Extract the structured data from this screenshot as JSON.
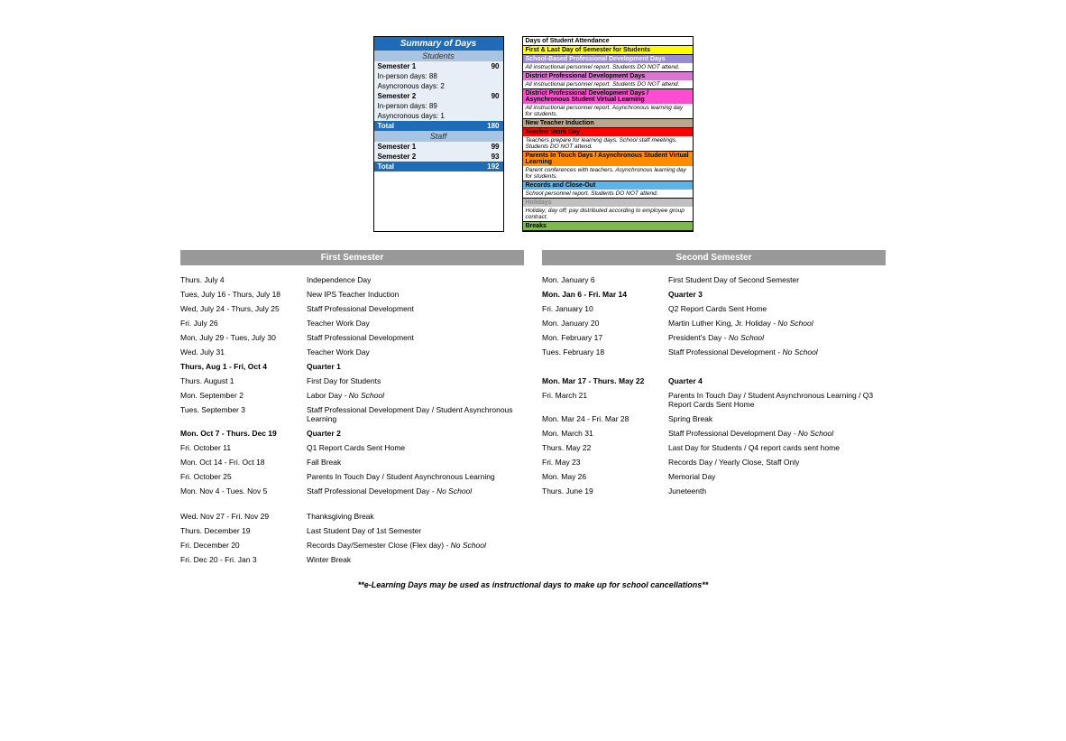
{
  "summary": {
    "title": "Summary of Days",
    "students_label": "Students",
    "staff_label": "Staff",
    "s1_label": "Semester 1",
    "s1_val": "90",
    "s1_inperson": "In-person days: 88",
    "s1_async": "Asyncronous days: 2",
    "s2_label": "Semester 2",
    "s2_val": "90",
    "s2_inperson": "In-person days: 89",
    "s2_async": "Asyncronous days: 1",
    "total_label": "Total",
    "total_students": "180",
    "staff_s1_label": "Semester 1",
    "staff_s1_val": "99",
    "staff_s2_label": "Semester 2",
    "staff_s2_val": "93",
    "total_staff": "192"
  },
  "legend": [
    {
      "head": "Days of Student Attendance",
      "head_bg": "#ffffff",
      "head_color": "#000"
    },
    {
      "head": "First & Last Day of Semester for Students",
      "head_bg": "#ffff00",
      "head_color": "#000"
    },
    {
      "head": "School-Based Professional Development Days",
      "head_bg": "#9b8bd6",
      "head_color": "#fff",
      "desc": "All instructional personnel report. Students DO NOT attend."
    },
    {
      "head": "District Professional Development Days",
      "head_bg": "#d976d0",
      "head_color": "#000",
      "desc": "All instructional personnel report. Students DO NOT attend."
    },
    {
      "head": "District Professional Development Days / Asynchronous Student Virtual Learning",
      "head_bg": "#ff4dd2",
      "head_color": "#000",
      "desc": "All instructional personnel report. Asynchronous learning day for students."
    },
    {
      "head": "New Teacher Induction",
      "head_bg": "#b8a890",
      "head_color": "#000"
    },
    {
      "head": "Teacher Work Day",
      "head_bg": "#ff0000",
      "head_color": "#000",
      "desc": "Teachers prepare for learning days. School staff meetings. Students DO NOT attend."
    },
    {
      "head": "Parents In Touch Days / Asynchronous Student Virtual Learning",
      "head_bg": "#ff8c00",
      "head_color": "#000",
      "desc": "Parent conferences with teachers. Asynchronous learning day for students."
    },
    {
      "head": "Records and Close-Out",
      "head_bg": "#5bb5e8",
      "head_color": "#000",
      "desc": "School personnel report. Students DO NOT attend."
    },
    {
      "head": "Holidays",
      "head_bg": "#c0c0c0",
      "head_color": "#888",
      "desc": "Holiday; day off; pay distributed according to employee group contract."
    },
    {
      "head": "Breaks",
      "head_bg": "#7fb84f",
      "head_color": "#000"
    }
  ],
  "first_sem_title": "First Semester",
  "second_sem_title": "Second Semester",
  "first_sem": [
    {
      "date": "Thurs. July 4",
      "desc": "Independence Day"
    },
    {
      "date": "Tues, July 16 - Thurs, July 18",
      "desc": "New IPS Teacher Induction"
    },
    {
      "date": "Wed, July 24 - Thurs, July 25",
      "desc": "Staff Professional Development"
    },
    {
      "date": "Fri. July 26",
      "desc": "Teacher Work Day"
    },
    {
      "date": "Mon, July 29 - Tues, July 30",
      "desc": "Staff Professional Development"
    },
    {
      "date": "Wed. July 31",
      "desc": "Teacher Work Day"
    },
    {
      "date": "Thurs, Aug 1 - Fri, Oct 4",
      "desc": "Quarter 1",
      "bold": true
    },
    {
      "date": "Thurs. August 1",
      "desc": "First Day for Students"
    },
    {
      "date": "Mon. September 2",
      "desc": "Labor Day",
      "suffix": " - No School"
    },
    {
      "date": "Tues. September 3",
      "desc": "Staff Professional Development Day / Student Asynchronous Learning"
    },
    {
      "date": "Mon. Oct 7 - Thurs. Dec 19",
      "desc": "Quarter 2",
      "bold": true
    },
    {
      "date": "Fri. October 11",
      "desc": "Q1 Report Cards Sent Home"
    },
    {
      "date": "Mon. Oct 14 - Fri. Oct 18",
      "desc": "Fall Break"
    },
    {
      "date": "Fri. October 25",
      "desc": "Parents In Touch Day / Student Asynchronous Learning"
    },
    {
      "date": "Mon. Nov 4 - Tues. Nov 5",
      "desc": "Staff Professional Development Day",
      "suffix": " - No School"
    },
    {
      "date": "Wed. Nov 27 - Fri. Nov 29",
      "desc": "Thanksgiving Break",
      "gap": true
    },
    {
      "date": "Thurs. December 19",
      "desc": "Last Student Day of 1st Semester"
    },
    {
      "date": "Fri. December 20",
      "desc": "Records Day/Semester Close (Flex day)",
      "suffix": " - No School"
    },
    {
      "date": "Fri. Dec 20 - Fri. Jan 3",
      "desc": "Winter Break"
    }
  ],
  "second_sem": [
    {
      "date": "Mon. January 6",
      "desc": "First Student Day of Second Semester"
    },
    {
      "date": "Mon. Jan 6 - Fri. Mar 14",
      "desc": "Quarter 3",
      "bold": true
    },
    {
      "date": "Fri. January 10",
      "desc": "Q2 Report Cards Sent Home"
    },
    {
      "date": "Mon. January 20",
      "desc": "Martin Luther King, Jr. Holiday",
      "suffix": " - No School"
    },
    {
      "date": "Mon. February 17",
      "desc": "President's Day",
      "suffix": " - No School"
    },
    {
      "date": "Tues. February 18",
      "desc": "Staff Professional Development",
      "suffix": " - No School"
    },
    {
      "date": "",
      "desc": "",
      "blank": true
    },
    {
      "date": "Mon. Mar 17 - Thurs. May 22",
      "desc": "Quarter 4",
      "bold": true
    },
    {
      "date": "Fri. March 21",
      "desc": "Parents In Touch Day / Student Asynchronous Learning / Q3 Report Cards Sent Home"
    },
    {
      "date": "Mon. Mar 24 - Fri. Mar 28",
      "desc": "Spring Break"
    },
    {
      "date": "Mon. March 31",
      "desc": "Staff Professional Development Day",
      "suffix": " - No School"
    },
    {
      "date": "Thurs. May 22",
      "desc": "Last Day for Students / Q4 report cards sent home"
    },
    {
      "date": "Fri. May 23",
      "desc": "Records Day / Yearly Close, Staff Only"
    },
    {
      "date": "Mon. May 26",
      "desc": "Memorial Day"
    },
    {
      "date": "Thurs. June 19",
      "desc": "Juneteenth"
    }
  ],
  "footer": "**e-Learning Days may be used as instructional days to make up for school cancellations**"
}
